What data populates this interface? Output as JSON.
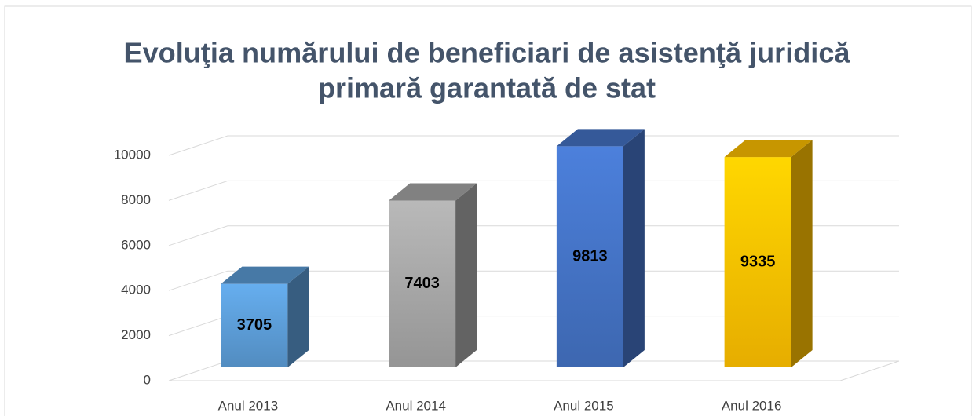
{
  "chart_data": {
    "type": "bar3d",
    "title": [
      "Evoluţia numărului de beneficiari de asistenţă juridică",
      "primară garantată de stat"
    ],
    "categories": [
      "Anul 2013",
      "Anul 2014",
      "Anul 2015",
      "Anul 2016"
    ],
    "values": [
      3705,
      7403,
      9813,
      9335
    ],
    "colors": [
      "#5b9bd5",
      "#a5a5a5",
      "#4472c4",
      "#ffc000"
    ],
    "ylim": [
      0,
      10000
    ],
    "yticks": [
      0,
      2000,
      4000,
      6000,
      8000,
      10000
    ],
    "grid": true
  }
}
